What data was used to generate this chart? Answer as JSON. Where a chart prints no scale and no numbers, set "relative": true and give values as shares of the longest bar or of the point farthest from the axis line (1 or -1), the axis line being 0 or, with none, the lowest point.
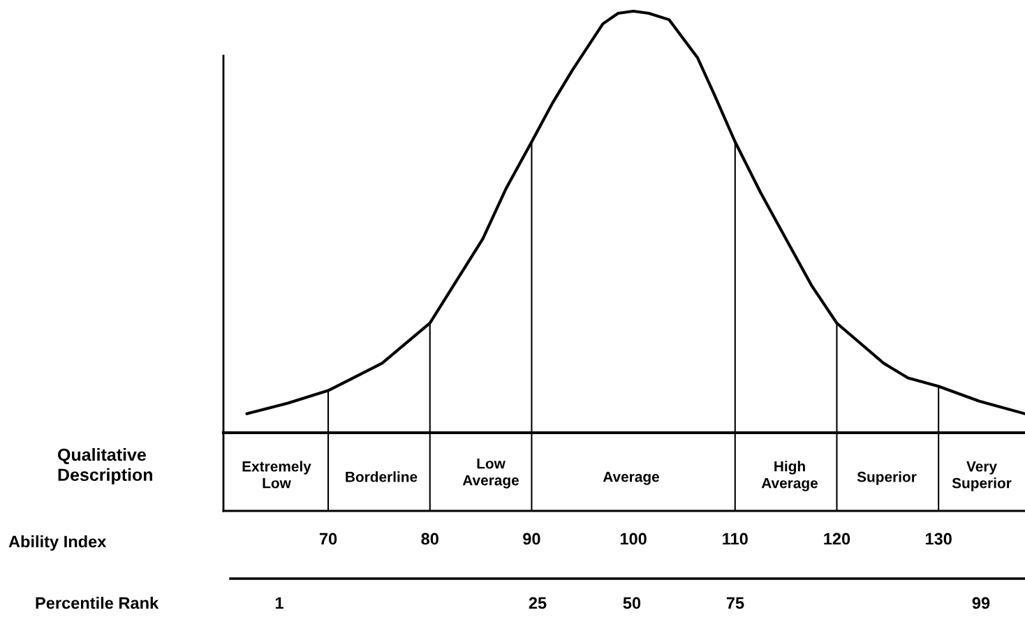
{
  "chart_data": {
    "type": "line",
    "relative": true,
    "annotations": [
      "Qualitative\nDescription",
      "Extremely\nLow",
      "Borderline",
      "Low\nAverage",
      "Average",
      "High\nAverage",
      "Superior",
      "Very\nSuperior",
      "Ability Index",
      "Percentile Rank",
      "1",
      "25",
      "50",
      "75",
      "99"
    ],
    "xlim": [
      59.7,
      138.5
    ],
    "xticks": [
      70,
      80,
      90,
      100,
      110,
      120,
      130
    ],
    "series": [
      {
        "color": "#000000",
        "x": [
          62,
          66,
          70,
          75.3,
          80,
          85.2,
          87.5,
          90,
          92,
          94,
          97,
          98.5,
          100,
          101.5,
          103.5,
          106.3,
          108,
          110,
          112.5,
          115,
          117.5,
          120,
          124.6,
          127,
          130,
          134,
          138.5
        ],
        "values": [
          0.045,
          0.07,
          0.1,
          0.165,
          0.26,
          0.46,
          0.58,
          0.69,
          0.78,
          0.86,
          0.97,
          0.995,
          1.0,
          0.995,
          0.98,
          0.89,
          0.8,
          0.69,
          0.57,
          0.46,
          0.35,
          0.26,
          0.165,
          0.13,
          0.11,
          0.075,
          0.045
        ]
      }
    ],
    "ref_lines": [
      {
        "axis": "x",
        "value": 70
      },
      {
        "axis": "x",
        "value": 80
      },
      {
        "axis": "x",
        "value": 90
      },
      {
        "axis": "x",
        "value": 110
      },
      {
        "axis": "x",
        "value": 120
      },
      {
        "axis": "x",
        "value": 130
      }
    ]
  }
}
